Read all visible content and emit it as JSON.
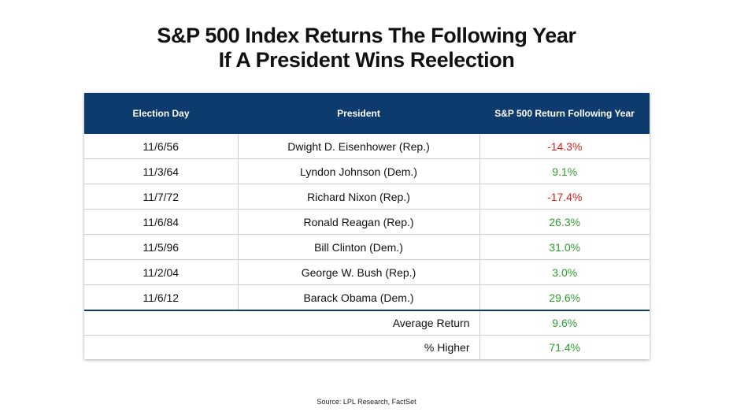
{
  "title_line1": "S&P 500 Index Returns The Following Year",
  "title_line2": "If A President Wins Reelection",
  "colors": {
    "header_bg": "#0d3b6e",
    "negative": "#e02020",
    "positive": "#2e9e2e"
  },
  "chart_data": {
    "type": "table",
    "columns": [
      "Election Day",
      "President",
      "S&P 500 Return Following Year"
    ],
    "rows": [
      {
        "date": "11/6/56",
        "president": "Dwight D. Eisenhower (Rep.)",
        "return": "-14.3%",
        "value": -14.3
      },
      {
        "date": "11/3/64",
        "president": "Lyndon Johnson (Dem.)",
        "return": "9.1%",
        "value": 9.1
      },
      {
        "date": "11/7/72",
        "president": "Richard Nixon (Rep.)",
        "return": "-17.4%",
        "value": -17.4
      },
      {
        "date": "11/6/84",
        "president": "Ronald Reagan (Rep.)",
        "return": "26.3%",
        "value": 26.3
      },
      {
        "date": "11/5/96",
        "president": "Bill Clinton (Dem.)",
        "return": "31.0%",
        "value": 31.0
      },
      {
        "date": "11/2/04",
        "president": "George W. Bush (Rep.)",
        "return": "3.0%",
        "value": 3.0
      },
      {
        "date": "11/6/12",
        "president": "Barack Obama (Dem.)",
        "return": "29.6%",
        "value": 29.6
      }
    ],
    "summary": [
      {
        "label": "Average Return",
        "value": "9.6%"
      },
      {
        "label": "% Higher",
        "value": "71.4%"
      }
    ]
  },
  "source": "Source: LPL Research, FactSet"
}
